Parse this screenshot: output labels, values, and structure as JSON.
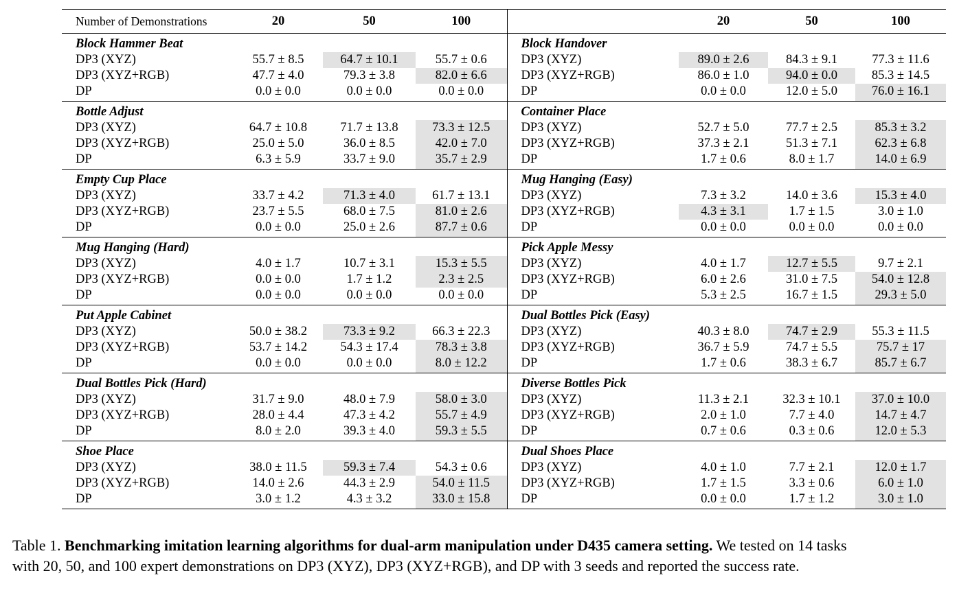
{
  "table": {
    "header_label": "Number of Demonstrations",
    "demo_counts": [
      "20",
      "50",
      "100"
    ],
    "rows": [
      {
        "left": {
          "task": "Block Hammer Beat",
          "methods": [
            {
              "name": "DP3 (XYZ)",
              "values": [
                "55.7 ± 8.5",
                "64.7 ± 10.1",
                "55.7 ± 0.6"
              ],
              "highlight": 1
            },
            {
              "name": "DP3 (XYZ+RGB)",
              "values": [
                "47.7 ± 4.0",
                "79.3 ± 3.8",
                "82.0 ± 6.6"
              ],
              "highlight": 2
            },
            {
              "name": "DP",
              "values": [
                "0.0 ± 0.0",
                "0.0 ± 0.0",
                "0.0 ± 0.0"
              ],
              "highlight": -1
            }
          ]
        },
        "right": {
          "task": "Block Handover",
          "methods": [
            {
              "name": "DP3 (XYZ)",
              "values": [
                "89.0 ± 2.6",
                "84.3 ± 9.1",
                "77.3 ± 11.6"
              ],
              "highlight": 0
            },
            {
              "name": "DP3 (XYZ+RGB)",
              "values": [
                "86.0 ± 1.0",
                "94.0 ± 0.0",
                "85.3 ± 14.5"
              ],
              "highlight": 1
            },
            {
              "name": "DP",
              "values": [
                "0.0 ± 0.0",
                "12.0 ± 5.0",
                "76.0 ± 16.1"
              ],
              "highlight": 2
            }
          ]
        }
      },
      {
        "left": {
          "task": "Bottle Adjust",
          "methods": [
            {
              "name": "DP3 (XYZ)",
              "values": [
                "64.7 ± 10.8",
                "71.7 ± 13.8",
                "73.3 ± 12.5"
              ],
              "highlight": 2
            },
            {
              "name": "DP3 (XYZ+RGB)",
              "values": [
                "25.0 ± 5.0",
                "36.0 ± 8.5",
                "42.0 ± 7.0"
              ],
              "highlight": 2
            },
            {
              "name": "DP",
              "values": [
                "6.3 ± 5.9",
                "33.7 ± 9.0",
                "35.7 ± 2.9"
              ],
              "highlight": 2
            }
          ]
        },
        "right": {
          "task": "Container Place",
          "methods": [
            {
              "name": "DP3 (XYZ)",
              "values": [
                "52.7 ± 5.0",
                "77.7 ± 2.5",
                "85.3 ± 3.2"
              ],
              "highlight": 2
            },
            {
              "name": "DP3 (XYZ+RGB)",
              "values": [
                "37.3 ± 2.1",
                "51.3 ± 7.1",
                "62.3 ± 6.8"
              ],
              "highlight": 2
            },
            {
              "name": "DP",
              "values": [
                "1.7 ± 0.6",
                "8.0 ± 1.7",
                "14.0 ± 6.9"
              ],
              "highlight": 2
            }
          ]
        }
      },
      {
        "left": {
          "task": "Empty Cup Place",
          "methods": [
            {
              "name": "DP3 (XYZ)",
              "values": [
                "33.7 ± 4.2",
                "71.3 ± 4.0",
                "61.7 ± 13.1"
              ],
              "highlight": 1
            },
            {
              "name": "DP3 (XYZ+RGB)",
              "values": [
                "23.7 ± 5.5",
                "68.0 ± 7.5",
                "81.0 ± 2.6"
              ],
              "highlight": 2
            },
            {
              "name": "DP",
              "values": [
                "0.0 ± 0.0",
                "25.0 ± 2.6",
                "87.7 ± 0.6"
              ],
              "highlight": 2
            }
          ]
        },
        "right": {
          "task": "Mug Hanging (Easy)",
          "methods": [
            {
              "name": "DP3 (XYZ)",
              "values": [
                "7.3 ± 3.2",
                "14.0 ± 3.6",
                "15.3 ± 4.0"
              ],
              "highlight": 2
            },
            {
              "name": "DP3 (XYZ+RGB)",
              "values": [
                "4.3 ± 3.1",
                "1.7 ± 1.5",
                "3.0 ± 1.0"
              ],
              "highlight": 0
            },
            {
              "name": "DP",
              "values": [
                "0.0 ± 0.0",
                "0.0 ± 0.0",
                "0.0 ± 0.0"
              ],
              "highlight": -1
            }
          ]
        }
      },
      {
        "left": {
          "task": "Mug Hanging (Hard)",
          "methods": [
            {
              "name": "DP3 (XYZ)",
              "values": [
                "4.0 ± 1.7",
                "10.7 ± 3.1",
                "15.3 ± 5.5"
              ],
              "highlight": 2
            },
            {
              "name": "DP3 (XYZ+RGB)",
              "values": [
                "0.0 ± 0.0",
                "1.7 ± 1.2",
                "2.3 ± 2.5"
              ],
              "highlight": 2
            },
            {
              "name": "DP",
              "values": [
                "0.0 ± 0.0",
                "0.0 ± 0.0",
                "0.0 ± 0.0"
              ],
              "highlight": -1
            }
          ]
        },
        "right": {
          "task": "Pick Apple Messy",
          "methods": [
            {
              "name": "DP3 (XYZ)",
              "values": [
                "4.0 ± 1.7",
                "12.7 ± 5.5",
                "9.7 ± 2.1"
              ],
              "highlight": 1
            },
            {
              "name": "DP3 (XYZ+RGB)",
              "values": [
                "6.0 ± 2.6",
                "31.0 ± 7.5",
                "54.0 ± 12.8"
              ],
              "highlight": 2
            },
            {
              "name": "DP",
              "values": [
                "5.3 ± 2.5",
                "16.7 ± 1.5",
                "29.3 ± 5.0"
              ],
              "highlight": 2
            }
          ]
        }
      },
      {
        "left": {
          "task": "Put Apple Cabinet",
          "methods": [
            {
              "name": "DP3 (XYZ)",
              "values": [
                "50.0 ± 38.2",
                "73.3 ± 9.2",
                "66.3 ± 22.3"
              ],
              "highlight": 1
            },
            {
              "name": "DP3 (XYZ+RGB)",
              "values": [
                "53.7 ± 14.2",
                "54.3 ± 17.4",
                "78.3 ± 3.8"
              ],
              "highlight": 2
            },
            {
              "name": "DP",
              "values": [
                "0.0 ± 0.0",
                "0.0 ± 0.0",
                "8.0 ± 12.2"
              ],
              "highlight": 2
            }
          ]
        },
        "right": {
          "task": "Dual Bottles Pick (Easy)",
          "methods": [
            {
              "name": "DP3 (XYZ)",
              "values": [
                "40.3 ± 8.0",
                "74.7 ± 2.9",
                "55.3 ± 11.5"
              ],
              "highlight": 1
            },
            {
              "name": "DP3 (XYZ+RGB)",
              "values": [
                "36.7 ± 5.9",
                "74.7 ± 5.5",
                "75.7 ± 17"
              ],
              "highlight": 2
            },
            {
              "name": "DP",
              "values": [
                "1.7 ± 0.6",
                "38.3 ± 6.7",
                "85.7 ± 6.7"
              ],
              "highlight": 2
            }
          ]
        }
      },
      {
        "left": {
          "task": "Dual Bottles Pick (Hard)",
          "methods": [
            {
              "name": "DP3 (XYZ)",
              "values": [
                "31.7 ± 9.0",
                "48.0 ± 7.9",
                "58.0 ± 3.0"
              ],
              "highlight": 2
            },
            {
              "name": "DP3 (XYZ+RGB)",
              "values": [
                "28.0 ± 4.4",
                "47.3 ± 4.2",
                "55.7 ± 4.9"
              ],
              "highlight": 2
            },
            {
              "name": "DP",
              "values": [
                "8.0 ± 2.0",
                "39.3 ± 4.0",
                "59.3 ± 5.5"
              ],
              "highlight": 2
            }
          ]
        },
        "right": {
          "task": "Diverse Bottles Pick",
          "methods": [
            {
              "name": "DP3 (XYZ)",
              "values": [
                "11.3 ± 2.1",
                "32.3 ± 10.1",
                "37.0 ± 10.0"
              ],
              "highlight": 2
            },
            {
              "name": "DP3 (XYZ+RGB)",
              "values": [
                "2.0 ± 1.0",
                "7.7 ± 4.0",
                "14.7 ± 4.7"
              ],
              "highlight": 2
            },
            {
              "name": "DP",
              "values": [
                "0.7 ± 0.6",
                "0.3 ± 0.6",
                "12.0 ± 5.3"
              ],
              "highlight": 2
            }
          ]
        }
      },
      {
        "left": {
          "task": "Shoe Place",
          "methods": [
            {
              "name": "DP3 (XYZ)",
              "values": [
                "38.0 ± 11.5",
                "59.3 ± 7.4",
                "54.3 ± 0.6"
              ],
              "highlight": 1
            },
            {
              "name": "DP3 (XYZ+RGB)",
              "values": [
                "14.0 ± 2.6",
                "44.3 ± 2.9",
                "54.0 ± 11.5"
              ],
              "highlight": 2
            },
            {
              "name": "DP",
              "values": [
                "3.0 ± 1.2",
                "4.3 ± 3.2",
                "33.0 ± 15.8"
              ],
              "highlight": 2
            }
          ]
        },
        "right": {
          "task": "Dual Shoes Place",
          "methods": [
            {
              "name": "DP3 (XYZ)",
              "values": [
                "4.0 ± 1.0",
                "7.7 ± 2.1",
                "12.0 ± 1.7"
              ],
              "highlight": 2
            },
            {
              "name": "DP3 (XYZ+RGB)",
              "values": [
                "1.7 ± 1.5",
                "3.3 ± 0.6",
                "6.0 ± 1.0"
              ],
              "highlight": 2
            },
            {
              "name": "DP",
              "values": [
                "0.0 ± 0.0",
                "1.7 ± 1.2",
                "3.0 ± 1.0"
              ],
              "highlight": 2
            }
          ]
        }
      }
    ]
  },
  "caption": {
    "label": "Table 1.",
    "bold": "Benchmarking imitation learning algorithms for dual-arm manipulation under D435 camera setting.",
    "line1_rest": "We tested on 14 tasks",
    "line2": "with 20, 50, and 100 expert demonstrations on DP3 (XYZ), DP3 (XYZ+RGB), and DP with 3 seeds and reported the success rate."
  }
}
